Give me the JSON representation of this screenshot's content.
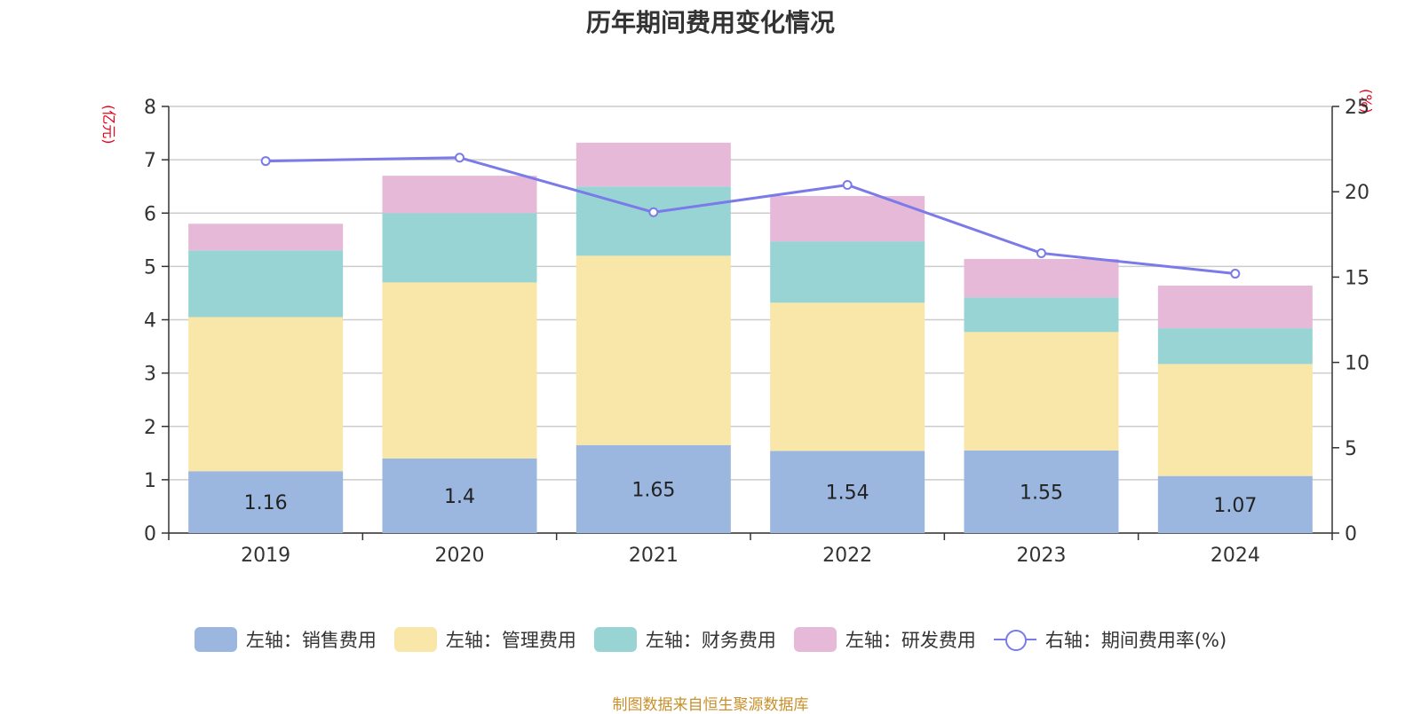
{
  "title": "历年期间费用变化情况",
  "units": {
    "left": "(亿元)",
    "right": "(%)"
  },
  "source": "制图数据来自恒生聚源数据库",
  "chart_data": {
    "type": "bar",
    "stacked": true,
    "title": "历年期间费用变化情况",
    "categories": [
      "2019",
      "2020",
      "2021",
      "2022",
      "2023",
      "2024"
    ],
    "left_axis": {
      "unit": "(亿元)",
      "ylim": [
        0,
        8
      ],
      "ticks": [
        0,
        1,
        2,
        3,
        4,
        5,
        6,
        7,
        8
      ]
    },
    "right_axis": {
      "unit": "(%)",
      "ylim": [
        0,
        25
      ],
      "ticks": [
        0,
        5,
        10,
        15,
        20,
        25
      ]
    },
    "grid": true,
    "legend_position": "bottom",
    "series": [
      {
        "name": "左轴：销售费用",
        "axis": "left",
        "type": "bar",
        "color": "#9bb7e0",
        "values": [
          1.16,
          1.4,
          1.65,
          1.54,
          1.55,
          1.07
        ],
        "data_labels": [
          "1.16",
          "1.4",
          "1.65",
          "1.54",
          "1.55",
          "1.07"
        ]
      },
      {
        "name": "左轴：管理费用",
        "axis": "left",
        "type": "bar",
        "color": "#f8e7a8",
        "values": [
          2.89,
          3.3,
          3.55,
          2.78,
          2.22,
          2.1
        ]
      },
      {
        "name": "左轴：财务费用",
        "axis": "left",
        "type": "bar",
        "color": "#98d4d4",
        "values": [
          1.25,
          1.3,
          1.3,
          1.15,
          0.65,
          0.67
        ]
      },
      {
        "name": "左轴：研发费用",
        "axis": "left",
        "type": "bar",
        "color": "#e6b9d8",
        "values": [
          0.5,
          0.7,
          0.82,
          0.85,
          0.72,
          0.8
        ]
      },
      {
        "name": "右轴：期间费用率(%)",
        "axis": "right",
        "type": "line",
        "color": "#7a7ae8",
        "values": [
          21.8,
          22.0,
          18.8,
          20.4,
          16.4,
          15.2
        ]
      }
    ]
  }
}
